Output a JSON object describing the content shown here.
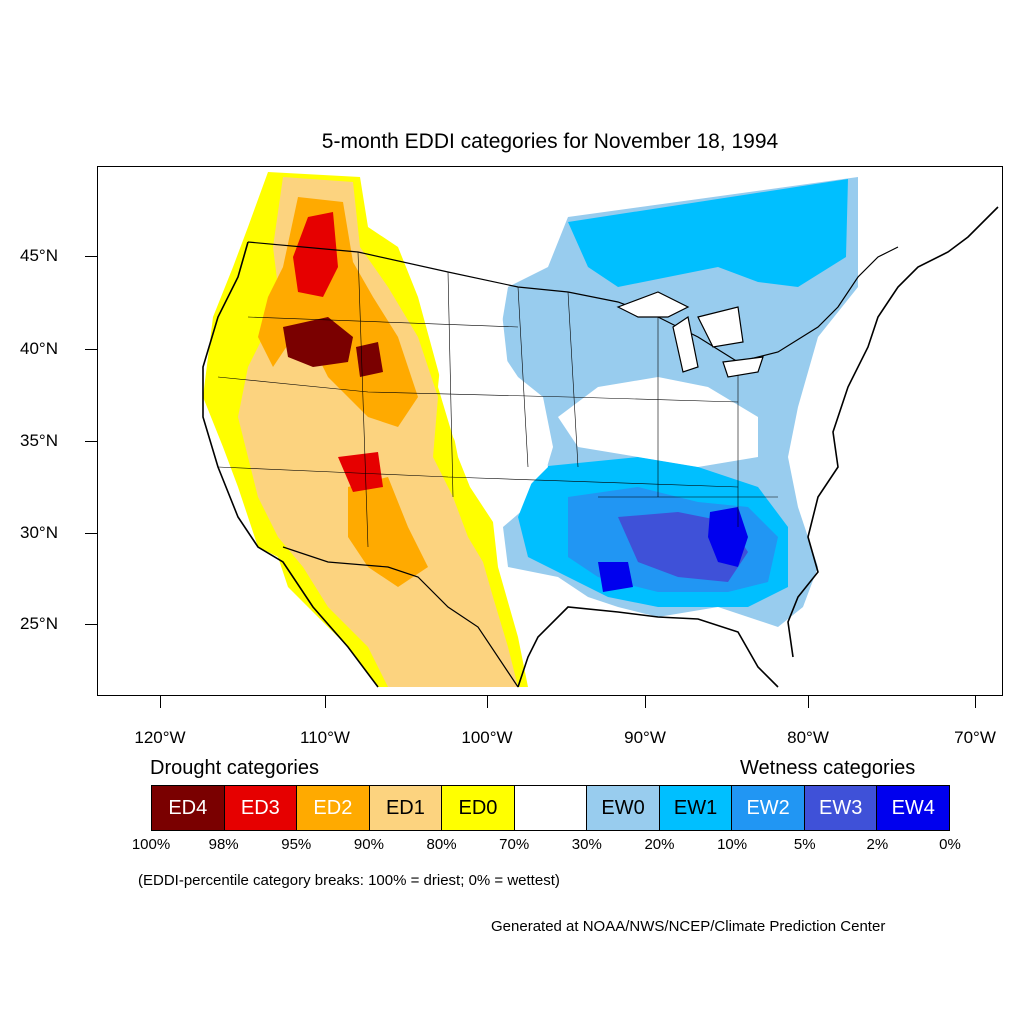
{
  "title": "5-month EDDI categories for November 18, 1994",
  "lat_labels": [
    "45°N",
    "40°N",
    "35°N",
    "30°N",
    "25°N"
  ],
  "lon_labels": [
    "120°W",
    "110°W",
    "100°W",
    "90°W",
    "80°W",
    "70°W"
  ],
  "legend": {
    "drought_heading": "Drought categories",
    "wetness_heading": "Wetness categories",
    "categories": [
      {
        "label": "ED4",
        "color": "#7a0000",
        "text_color": "#ffffff"
      },
      {
        "label": "ED3",
        "color": "#e60000",
        "text_color": "#ffffff"
      },
      {
        "label": "ED2",
        "color": "#ffaa00",
        "text_color": "#ffffff"
      },
      {
        "label": "ED1",
        "color": "#fcd37f",
        "text_color": "#000000"
      },
      {
        "label": "ED0",
        "color": "#ffff00",
        "text_color": "#000000"
      },
      {
        "label": "",
        "color": "#ffffff",
        "text_color": "#000000"
      },
      {
        "label": "EW0",
        "color": "#98ccee",
        "text_color": "#000000"
      },
      {
        "label": "EW1",
        "color": "#00bfff",
        "text_color": "#000000"
      },
      {
        "label": "EW2",
        "color": "#2196f3",
        "text_color": "#ffffff"
      },
      {
        "label": "EW3",
        "color": "#3f51d8",
        "text_color": "#ffffff"
      },
      {
        "label": "EW4",
        "color": "#0000ee",
        "text_color": "#ffffff"
      }
    ],
    "breaks": [
      "100%",
      "98%",
      "95%",
      "90%",
      "80%",
      "70%",
      "30%",
      "20%",
      "10%",
      "5%",
      "2%",
      "0%"
    ]
  },
  "note": "(EDDI-percentile category breaks: 100% = driest; 0% = wettest)",
  "credit": "Generated at NOAA/NWS/NCEP/Climate Prediction Center"
}
